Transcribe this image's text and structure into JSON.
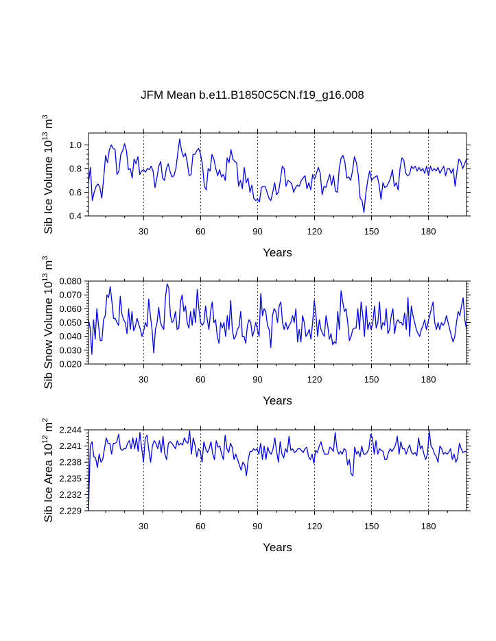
{
  "title": "JFM Mean b.e11.B1850C5CN.f19_g16.008",
  "colors": {
    "series": "#0000ff",
    "axes": "#000000",
    "background": "#ffffff"
  },
  "chart_data": [
    {
      "type": "line",
      "ylabel_main": "Sib Ice Volume 10",
      "ylabel_exp": "13",
      "ylabel_unit": " m",
      "ylabel_unit_exp": "3",
      "xlabel": "Years",
      "xlim": [
        1,
        200
      ],
      "ylim": [
        0.4,
        1.1
      ],
      "xticks": [
        30,
        60,
        90,
        120,
        150,
        180
      ],
      "xtick_labels": [
        "30",
        "60",
        "90",
        "120",
        "150",
        "180"
      ],
      "yticks": [
        0.4,
        0.6,
        0.8,
        1.0
      ],
      "ytick_labels": [
        "0.4",
        "0.6",
        "0.8",
        "1.0"
      ],
      "grid": "vertical dashed at x ticks",
      "series": [
        {
          "name": "Sib Ice Volume",
          "color": "#0000ff",
          "values": [
            0.68,
            0.81,
            0.53,
            0.6,
            0.65,
            0.67,
            0.64,
            0.55,
            0.72,
            0.91,
            0.85,
            0.96,
            1.0,
            0.97,
            0.96,
            0.75,
            0.78,
            0.92,
            0.95,
            1.01,
            0.95,
            0.79,
            0.8,
            0.72,
            0.88,
            0.84,
            0.9,
            0.75,
            0.78,
            0.79,
            0.77,
            0.8,
            0.79,
            0.82,
            0.78,
            0.64,
            0.72,
            0.82,
            0.86,
            0.72,
            0.7,
            0.8,
            0.84,
            0.77,
            0.73,
            0.74,
            0.8,
            0.93,
            1.05,
            0.95,
            0.9,
            0.93,
            0.85,
            0.74,
            0.75,
            0.92,
            0.92,
            0.95,
            0.97,
            0.92,
            0.83,
            0.65,
            0.62,
            0.8,
            0.78,
            0.92,
            0.88,
            0.8,
            0.74,
            0.79,
            0.73,
            0.75,
            0.7,
            0.89,
            0.85,
            0.96,
            0.88,
            0.86,
            0.85,
            0.65,
            0.7,
            0.63,
            0.81,
            0.68,
            0.72,
            0.6,
            0.66,
            0.55,
            0.53,
            0.54,
            0.52,
            0.64,
            0.65,
            0.65,
            0.6,
            0.55,
            0.53,
            0.6,
            0.68,
            0.58,
            0.6,
            0.7,
            0.82,
            0.8,
            0.65,
            0.7,
            0.69,
            0.67,
            0.6,
            0.64,
            0.66,
            0.65,
            0.7,
            0.72,
            0.74,
            0.63,
            0.68,
            0.62,
            0.75,
            0.71,
            0.76,
            0.81,
            0.76,
            0.58,
            0.65,
            0.64,
            0.7,
            0.75,
            0.66,
            0.74,
            0.61,
            0.6,
            0.8,
            0.89,
            0.91,
            0.85,
            0.72,
            0.73,
            0.7,
            0.78,
            0.9,
            0.85,
            0.75,
            0.55,
            0.53,
            0.43,
            0.59,
            0.7,
            0.78,
            0.7,
            0.72,
            0.73,
            0.74,
            0.66,
            0.54,
            0.68,
            0.64,
            0.65,
            0.68,
            0.72,
            0.79,
            0.65,
            0.68,
            0.62,
            0.8,
            0.89,
            0.87,
            0.76,
            0.74,
            0.75,
            0.82,
            0.8,
            0.82,
            0.78,
            0.81,
            0.78,
            0.8,
            0.76,
            0.82,
            0.74,
            0.82,
            0.78,
            0.8,
            0.78,
            0.81,
            0.76,
            0.79,
            0.82,
            0.74,
            0.8,
            0.8,
            0.76,
            0.8,
            0.65,
            0.78,
            0.88,
            0.86,
            0.8,
            0.84,
            0.88
          ]
        }
      ]
    },
    {
      "type": "line",
      "ylabel_main": "Sib Snow Volume 10",
      "ylabel_exp": "13",
      "ylabel_unit": " m",
      "ylabel_unit_exp": "3",
      "xlabel": "Years",
      "xlim": [
        1,
        200
      ],
      "ylim": [
        0.02,
        0.08
      ],
      "xticks": [
        30,
        60,
        90,
        120,
        150,
        180
      ],
      "xtick_labels": [
        "30",
        "60",
        "90",
        "120",
        "150",
        "180"
      ],
      "yticks": [
        0.02,
        0.03,
        0.04,
        0.05,
        0.06,
        0.07,
        0.08
      ],
      "ytick_labels": [
        "0.020",
        "0.030",
        "0.040",
        "0.050",
        "0.060",
        "0.070",
        "0.080"
      ],
      "grid": "vertical dashed at x ticks",
      "series": [
        {
          "name": "Sib Snow Volume",
          "color": "#0000ff",
          "values": [
            0.052,
            0.046,
            0.027,
            0.052,
            0.038,
            0.06,
            0.048,
            0.037,
            0.037,
            0.052,
            0.055,
            0.07,
            0.068,
            0.076,
            0.065,
            0.053,
            0.053,
            0.05,
            0.048,
            0.069,
            0.056,
            0.052,
            0.05,
            0.042,
            0.06,
            0.045,
            0.058,
            0.044,
            0.047,
            0.053,
            0.049,
            0.045,
            0.04,
            0.044,
            0.05,
            0.047,
            0.067,
            0.055,
            0.045,
            0.028,
            0.045,
            0.05,
            0.061,
            0.05,
            0.047,
            0.045,
            0.068,
            0.078,
            0.075,
            0.055,
            0.05,
            0.052,
            0.058,
            0.045,
            0.046,
            0.065,
            0.07,
            0.058,
            0.062,
            0.05,
            0.046,
            0.058,
            0.048,
            0.06,
            0.05,
            0.074,
            0.06,
            0.05,
            0.048,
            0.05,
            0.062,
            0.052,
            0.045,
            0.058,
            0.065,
            0.05,
            0.052,
            0.04,
            0.035,
            0.05,
            0.046,
            0.05,
            0.04,
            0.055,
            0.045,
            0.066,
            0.045,
            0.038,
            0.04,
            0.045,
            0.047,
            0.058,
            0.04,
            0.04,
            0.035,
            0.048,
            0.052,
            0.05,
            0.04,
            0.044,
            0.05,
            0.045,
            0.04,
            0.071,
            0.055,
            0.06,
            0.058,
            0.048,
            0.045,
            0.032,
            0.055,
            0.06,
            0.058,
            0.05,
            0.062,
            0.065,
            0.05,
            0.045,
            0.05,
            0.045,
            0.048,
            0.05,
            0.055,
            0.05,
            0.06,
            0.036,
            0.045,
            0.036,
            0.055,
            0.05,
            0.04,
            0.042,
            0.045,
            0.038,
            0.05,
            0.066,
            0.055,
            0.04,
            0.052,
            0.045,
            0.042,
            0.04,
            0.055,
            0.048,
            0.038,
            0.042,
            0.034,
            0.036,
            0.035,
            0.058,
            0.045,
            0.073,
            0.065,
            0.058,
            0.06,
            0.05,
            0.037,
            0.04,
            0.045,
            0.046,
            0.046,
            0.06,
            0.045,
            0.065,
            0.055,
            0.04,
            0.062,
            0.045,
            0.05,
            0.045,
            0.05,
            0.062,
            0.046,
            0.05,
            0.065,
            0.045,
            0.05,
            0.048,
            0.06,
            0.042,
            0.045,
            0.055,
            0.06,
            0.042,
            0.05,
            0.052,
            0.05,
            0.05,
            0.048,
            0.057,
            0.045,
            0.068,
            0.04,
            0.062,
            0.055,
            0.05,
            0.045,
            0.042,
            0.04,
            0.045,
            0.048,
            0.052,
            0.045,
            0.05,
            0.055,
            0.06,
            0.065,
            0.05,
            0.045,
            0.05,
            0.045,
            0.05,
            0.048,
            0.05,
            0.055,
            0.05,
            0.045,
            0.04,
            0.036,
            0.04,
            0.05,
            0.058,
            0.055,
            0.062,
            0.068,
            0.052,
            0.045
          ]
        }
      ]
    },
    {
      "type": "line",
      "ylabel_main": "Sib Ice Area 10",
      "ylabel_exp": "12",
      "ylabel_unit": " m",
      "ylabel_unit_exp": "2",
      "xlabel": "Years",
      "xlim": [
        1,
        200
      ],
      "ylim": [
        2.229,
        2.244
      ],
      "xticks": [
        30,
        60,
        90,
        120,
        150,
        180
      ],
      "xtick_labels": [
        "30",
        "60",
        "90",
        "120",
        "150",
        "180"
      ],
      "yticks": [
        2.229,
        2.232,
        2.235,
        2.238,
        2.241,
        2.244
      ],
      "ytick_labels": [
        "2.229",
        "2.232",
        "2.235",
        "2.238",
        "2.241",
        "2.244"
      ],
      "grid": "vertical dashed at x ticks",
      "series": [
        {
          "name": "Sib Ice Area",
          "color": "#0000ff",
          "values": [
            2.229,
            2.241,
            2.2418,
            2.239,
            2.2388,
            2.237,
            2.2395,
            2.238,
            2.2385,
            2.2405,
            2.2425,
            2.2415,
            2.2415,
            2.2395,
            2.2415,
            2.2415,
            2.2418,
            2.2432,
            2.2405,
            2.2402,
            2.2405,
            2.2405,
            2.2415,
            2.242,
            2.2405,
            2.2425,
            2.2405,
            2.2425,
            2.24,
            2.2435,
            2.2405,
            2.238,
            2.2425,
            2.243,
            2.2402,
            2.238,
            2.241,
            2.242,
            2.2415,
            2.2405,
            2.242,
            2.2398,
            2.2428,
            2.2395,
            2.2385,
            2.2415,
            2.2418,
            2.2415,
            2.241,
            2.2405,
            2.242,
            2.2412,
            2.2415,
            2.2412,
            2.2425,
            2.2418,
            2.2415,
            2.2438,
            2.2395,
            2.2425,
            2.2412,
            2.239,
            2.2405,
            2.24,
            2.238,
            2.2418,
            2.2405,
            2.2398,
            2.2405,
            2.2418,
            2.2395,
            2.2385,
            2.242,
            2.2408,
            2.241,
            2.2395,
            2.2385,
            2.243,
            2.2405,
            2.2398,
            2.2415,
            2.2408,
            2.2385,
            2.2395,
            2.2385,
            2.2375,
            2.2365,
            2.238,
            2.2375,
            2.2355,
            2.2385,
            2.24,
            2.24,
            2.2405,
            2.2402,
            2.2405,
            2.2395,
            2.2415,
            2.2385,
            2.241,
            2.2385,
            2.2408,
            2.2398,
            2.2395,
            2.2405,
            2.2425,
            2.24,
            2.238,
            2.2418,
            2.2395,
            2.2388,
            2.2405,
            2.2398,
            2.2428,
            2.2402,
            2.2405,
            2.2398,
            2.24,
            2.2405,
            2.2405,
            2.2402,
            2.2398,
            2.2405,
            2.2408,
            2.239,
            2.2385,
            2.2395,
            2.2378,
            2.2402,
            2.2398,
            2.241,
            2.2418,
            2.2405,
            2.2395,
            2.2395,
            2.2395,
            2.2408,
            2.2405,
            2.24,
            2.2435,
            2.2405,
            2.2395,
            2.24,
            2.2395,
            2.2405,
            2.2402,
            2.2375,
            2.2385,
            2.2358,
            2.2355,
            2.2408,
            2.2395,
            2.24,
            2.239,
            2.241,
            2.2395,
            2.2395,
            2.2398,
            2.2405,
            2.2432,
            2.2425,
            2.2395,
            2.242,
            2.2395,
            2.2405,
            2.2402,
            2.24,
            2.2385,
            2.2385,
            2.2398,
            2.2405,
            2.24,
            2.2405,
            2.2412,
            2.2428,
            2.2395,
            2.2418,
            2.2405,
            2.2405,
            2.2395,
            2.2405,
            2.2412,
            2.2398,
            2.2395,
            2.2398,
            2.2392,
            2.2425,
            2.2405,
            2.241,
            2.2395,
            2.2385,
            2.2395,
            2.2438,
            2.241,
            2.2405,
            2.2395,
            2.239,
            2.238,
            2.241,
            2.2405,
            2.2395,
            2.2398,
            2.2395,
            2.2398,
            2.2405,
            2.2385,
            2.2395,
            2.238,
            2.2388,
            2.2415,
            2.2405,
            2.2398,
            2.24,
            2.24
          ]
        }
      ]
    }
  ]
}
